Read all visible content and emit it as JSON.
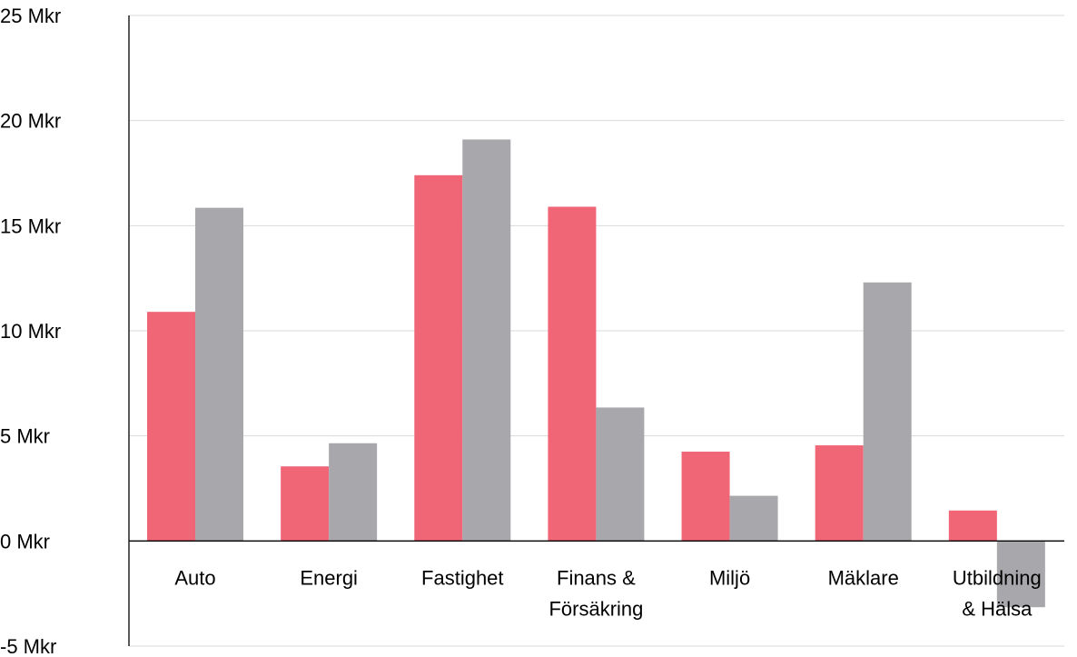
{
  "chart_data": {
    "type": "bar",
    "title": "",
    "xlabel": "",
    "ylabel": "",
    "categories": [
      [
        "Auto"
      ],
      [
        "Energi"
      ],
      [
        "Fastighet"
      ],
      [
        "Finans &",
        "Försäkring"
      ],
      [
        "Miljö"
      ],
      [
        "Mäklare"
      ],
      [
        "Utbildning",
        "& Hälsa"
      ]
    ],
    "series": [
      {
        "color": "#f06677",
        "values": [
          10.9,
          3.55,
          17.4,
          15.9,
          4.25,
          4.55,
          1.45
        ]
      },
      {
        "color": "#a8a8ac",
        "values": [
          15.85,
          4.65,
          19.1,
          6.35,
          2.15,
          12.3,
          -3.15
        ]
      }
    ],
    "ylim": [
      -5,
      25
    ],
    "yticks": [
      -5,
      0,
      5,
      10,
      15,
      20,
      25
    ],
    "ytick_labels": [
      "-5 Mkr",
      "0 Mkr",
      "5 Mkr",
      "10 Mkr",
      "15 Mkr",
      "20 Mkr",
      "25 Mkr"
    ],
    "grid": true,
    "legend": "none"
  }
}
